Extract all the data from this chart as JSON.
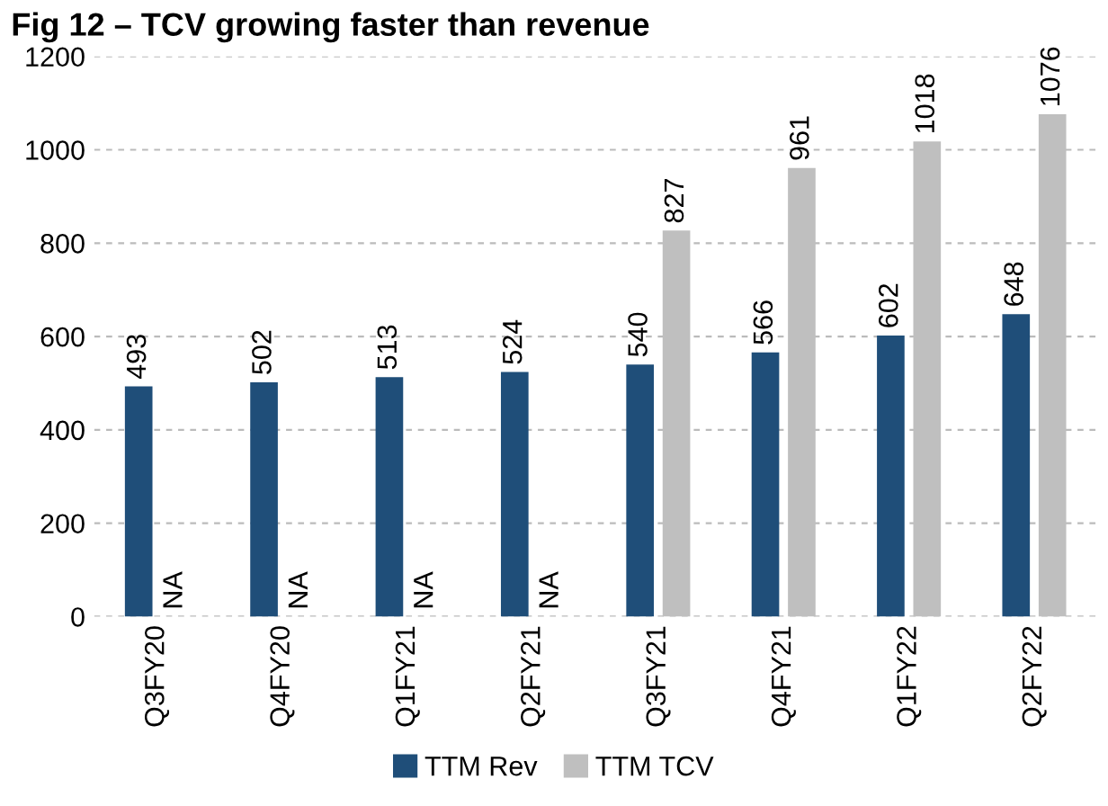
{
  "chart_data": {
    "type": "bar",
    "title": "Fig 12 – TCV growing faster than revenue",
    "categories": [
      "Q3FY20",
      "Q4FY20",
      "Q1FY21",
      "Q2FY21",
      "Q3FY21",
      "Q4FY21",
      "Q1FY22",
      "Q2FY22"
    ],
    "series": [
      {
        "name": "TTM Rev",
        "color": "#1f4e79",
        "values": [
          493,
          502,
          513,
          524,
          540,
          566,
          602,
          648
        ],
        "value_labels": [
          "493",
          "502",
          "513",
          "524",
          "540",
          "566",
          "602",
          "648"
        ]
      },
      {
        "name": "TTM TCV",
        "color": "#bfbfbf",
        "values": [
          null,
          null,
          null,
          null,
          827,
          961,
          1018,
          1076
        ],
        "value_labels": [
          "NA",
          "NA",
          "NA",
          "NA",
          "827",
          "961",
          "1018",
          "1076"
        ]
      }
    ],
    "ylim": [
      0,
      1200
    ],
    "yticks": [
      0,
      200,
      400,
      600,
      800,
      1000,
      1200
    ],
    "grid": "y",
    "legend": "bottom"
  }
}
